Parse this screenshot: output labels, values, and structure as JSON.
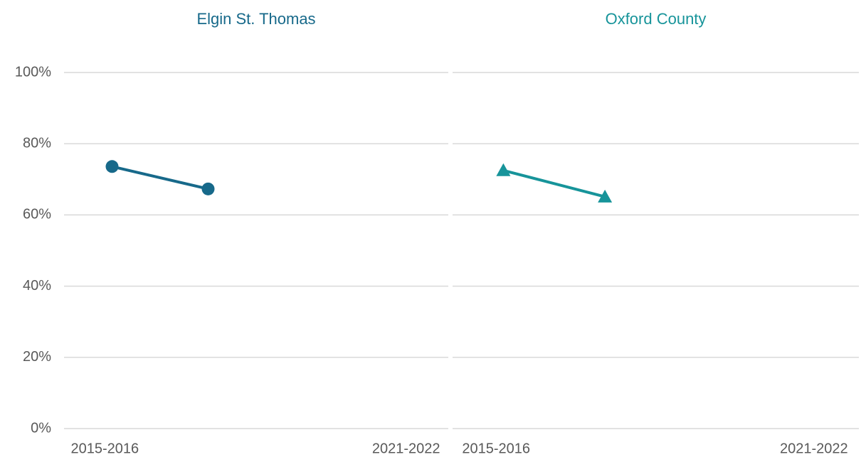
{
  "chart_data": [
    {
      "type": "line",
      "title": "Elgin St. Thomas",
      "categories": [
        "2015-2016",
        null,
        null,
        "2021-2022"
      ],
      "series": [
        {
          "color": "#17698a",
          "marker": "circle",
          "values": [
            73.6,
            67.3,
            null,
            null
          ]
        }
      ],
      "ylim": [
        0,
        100
      ],
      "yticks": [
        {
          "value": 0,
          "label": "0%"
        },
        {
          "value": 20,
          "label": "20%"
        },
        {
          "value": 40,
          "label": "40%"
        },
        {
          "value": 60,
          "label": "60%"
        },
        {
          "value": 80,
          "label": "80%"
        },
        {
          "value": 100,
          "label": "100%"
        }
      ],
      "grid": true
    },
    {
      "type": "line",
      "title": "Oxford County",
      "categories": [
        "2015-2016",
        null,
        null,
        "2021-2022"
      ],
      "series": [
        {
          "color": "#17949a",
          "marker": "triangle",
          "values": [
            72.5,
            65.1,
            null,
            null
          ]
        }
      ],
      "ylim": [
        0,
        100
      ],
      "yticks": [
        0,
        20,
        40,
        60,
        80,
        100
      ],
      "grid": true
    }
  ]
}
